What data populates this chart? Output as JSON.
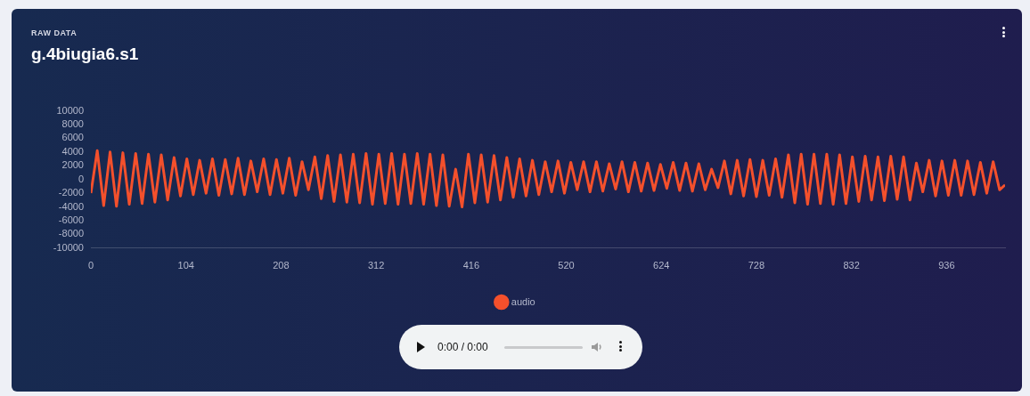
{
  "chart_data": {
    "type": "line",
    "subtitle": "RAW DATA",
    "title": "g.4biugia6.s1",
    "x": [
      0,
      7,
      14,
      21,
      28,
      35,
      42,
      49,
      56,
      63,
      70,
      77,
      84,
      91,
      98,
      105,
      112,
      119,
      126,
      133,
      140,
      147,
      154,
      161,
      168,
      175,
      182,
      189,
      196,
      203,
      210,
      217,
      224,
      231,
      238,
      245,
      252,
      259,
      266,
      273,
      280,
      287,
      294,
      301,
      308,
      315,
      322,
      329,
      336,
      343,
      350,
      357,
      364,
      371,
      378,
      385,
      392,
      399,
      406,
      413,
      420,
      427,
      434,
      441,
      448,
      455,
      462,
      469,
      476,
      483,
      490,
      497,
      504,
      511,
      518,
      525,
      532,
      539,
      546,
      553,
      560,
      567,
      574,
      581,
      588,
      595,
      602,
      609,
      616,
      623,
      630,
      637,
      644,
      651,
      658,
      665,
      672,
      679,
      686,
      693,
      700,
      707,
      714,
      721,
      728,
      735,
      742,
      749,
      756,
      763,
      770,
      777,
      784,
      791,
      798,
      805,
      812,
      819,
      826,
      833,
      840,
      847,
      854,
      861,
      868,
      875,
      882,
      889,
      896,
      903,
      910,
      917,
      924,
      931,
      938,
      945,
      952,
      959,
      966,
      973,
      980,
      987,
      994,
      1000
    ],
    "series": [
      {
        "name": "audio",
        "color": "#f4502c",
        "values": [
          -2000,
          4200,
          -3800,
          4000,
          -3900,
          3900,
          -3600,
          3800,
          -3500,
          3700,
          -3300,
          3600,
          -3000,
          3200,
          -2400,
          3000,
          -2200,
          2800,
          -2000,
          3000,
          -2300,
          2900,
          -2100,
          3100,
          -2200,
          2700,
          -1800,
          3000,
          -2200,
          2900,
          -2000,
          3100,
          -2300,
          2600,
          -1500,
          3300,
          -2800,
          3500,
          -3200,
          3600,
          -3300,
          3700,
          -3400,
          3800,
          -3600,
          3700,
          -3500,
          3800,
          -3600,
          3700,
          -3500,
          3800,
          -3600,
          3700,
          -3800,
          3600,
          -3900,
          1500,
          -4000,
          3700,
          -3400,
          3600,
          -3300,
          3500,
          -3000,
          3200,
          -2600,
          3000,
          -2400,
          2800,
          -2200,
          2600,
          -1800,
          2700,
          -2000,
          2500,
          -1500,
          2600,
          -1800,
          2600,
          -1700,
          2300,
          -1400,
          2600,
          -1800,
          2500,
          -1700,
          2400,
          -1600,
          2200,
          -1300,
          2500,
          -1600,
          2400,
          -1700,
          2300,
          -1500,
          1500,
          -1200,
          2700,
          -2100,
          2800,
          -2400,
          2900,
          -2500,
          2800,
          -2300,
          3000,
          -2600,
          3600,
          -3400,
          3700,
          -3600,
          3700,
          -3500,
          3700,
          -3600,
          3600,
          -3500,
          3300,
          -3200,
          3400,
          -3000,
          3300,
          -3100,
          3400,
          -2900,
          3300,
          -3000,
          2400,
          -1800,
          2800,
          -2400,
          2700,
          -2300,
          2800,
          -2300,
          2700,
          -2200,
          2500,
          -2000,
          2600,
          -1500,
          -800
        ]
      }
    ],
    "xlim": [
      0,
      1000
    ],
    "xticks": [
      0,
      104,
      208,
      312,
      416,
      520,
      624,
      728,
      832,
      936
    ],
    "ylim": [
      -10000,
      10000
    ],
    "yticks": [
      -10000,
      -8000,
      -6000,
      -4000,
      -2000,
      0,
      2000,
      4000,
      6000,
      8000,
      10000
    ],
    "legend": "bottom",
    "marker": "none",
    "annotations": [
      "0:00 / 0:00"
    ]
  }
}
